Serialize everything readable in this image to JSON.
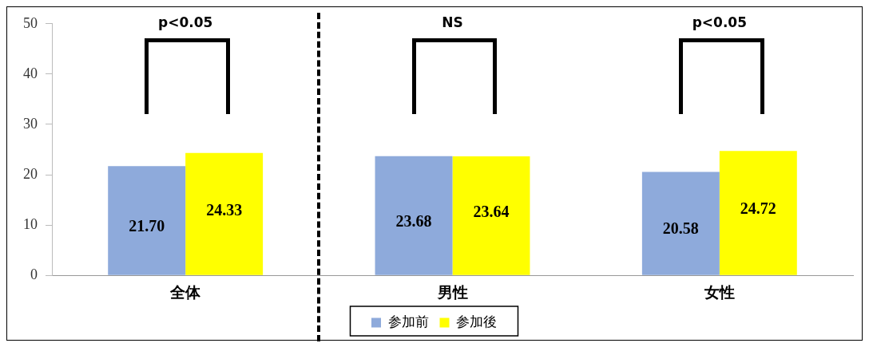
{
  "chart_data": {
    "type": "bar",
    "categories": [
      "全体",
      "男性",
      "女性"
    ],
    "series": [
      {
        "name": "参加前",
        "color": "#8eaadb",
        "values": [
          21.7,
          23.68,
          20.58
        ],
        "value_labels": [
          "21.70",
          "23.68",
          "20.58"
        ]
      },
      {
        "name": "参加後",
        "color": "#ffff00",
        "values": [
          24.33,
          23.64,
          24.72
        ],
        "value_labels": [
          "24.33",
          "23.64",
          "24.72"
        ]
      }
    ],
    "ylim": [
      0,
      50
    ],
    "yticks": [
      0,
      10,
      20,
      30,
      40,
      50
    ],
    "grid": false,
    "legend": "bottom",
    "annotations": [
      "p<0.05",
      "NS",
      "p<0.05"
    ]
  }
}
